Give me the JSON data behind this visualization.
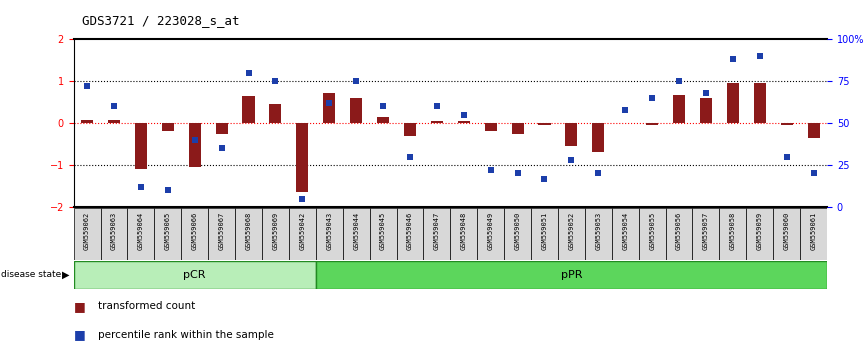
{
  "title": "GDS3721 / 223028_s_at",
  "samples": [
    "GSM559062",
    "GSM559063",
    "GSM559064",
    "GSM559065",
    "GSM559066",
    "GSM559067",
    "GSM559068",
    "GSM559069",
    "GSM559042",
    "GSM559043",
    "GSM559044",
    "GSM559045",
    "GSM559046",
    "GSM559047",
    "GSM559048",
    "GSM559049",
    "GSM559050",
    "GSM559051",
    "GSM559052",
    "GSM559053",
    "GSM559054",
    "GSM559055",
    "GSM559056",
    "GSM559057",
    "GSM559058",
    "GSM559059",
    "GSM559060",
    "GSM559061"
  ],
  "bar_values": [
    0.07,
    0.07,
    -1.1,
    -0.18,
    -1.05,
    -0.25,
    0.65,
    0.45,
    -1.65,
    0.72,
    0.6,
    0.14,
    -0.3,
    0.04,
    0.04,
    -0.18,
    -0.25,
    -0.04,
    -0.55,
    -0.7,
    0.0,
    -0.04,
    0.67,
    0.6,
    0.95,
    0.95,
    -0.04,
    -0.35
  ],
  "scatter_values": [
    72,
    60,
    12,
    10,
    40,
    35,
    80,
    75,
    5,
    62,
    75,
    60,
    30,
    60,
    55,
    22,
    20,
    17,
    28,
    20,
    58,
    65,
    75,
    68,
    88,
    90,
    30,
    20
  ],
  "pCR_count": 9,
  "pPR_count": 19,
  "bar_color": "#8B1A1A",
  "scatter_color": "#1C3EAA",
  "pCR_color": "#B8EEB8",
  "pPR_color": "#5CD65C",
  "ylim": [
    -2,
    2
  ],
  "yticks_left": [
    -2,
    -1,
    0,
    1,
    2
  ],
  "yticks_right": [
    0,
    25,
    50,
    75,
    100
  ],
  "hline_y": [
    1.0,
    -1.0
  ]
}
